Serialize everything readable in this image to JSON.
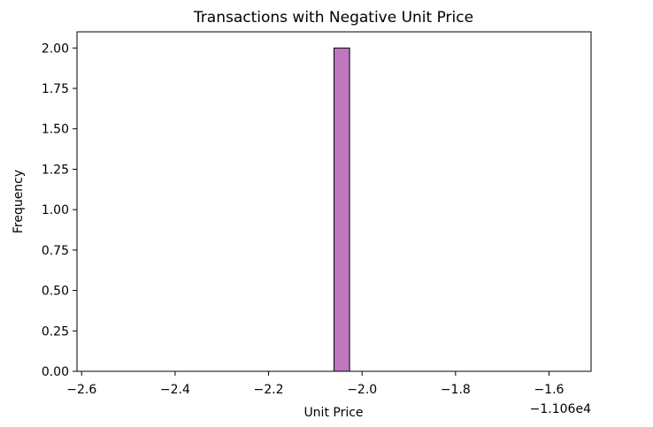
{
  "chart_data": {
    "type": "bar",
    "title": "Transactions with Negative Unit Price",
    "xlabel": "Unit Price",
    "ylabel": "Frequency",
    "x_offset_label": "−1.106e4",
    "xlim": [
      -2.61,
      -1.51
    ],
    "ylim": [
      0,
      2.1
    ],
    "x_ticks": [
      {
        "value": -2.6,
        "label": "−2.6"
      },
      {
        "value": -2.4,
        "label": "−2.4"
      },
      {
        "value": -2.2,
        "label": "−2.2"
      },
      {
        "value": -2.0,
        "label": "−2.0"
      },
      {
        "value": -1.8,
        "label": "−1.8"
      },
      {
        "value": -1.6,
        "label": "−1.6"
      }
    ],
    "y_ticks": [
      {
        "value": 0.0,
        "label": "0.00"
      },
      {
        "value": 0.25,
        "label": "0.25"
      },
      {
        "value": 0.5,
        "label": "0.50"
      },
      {
        "value": 0.75,
        "label": "0.75"
      },
      {
        "value": 1.0,
        "label": "1.00"
      },
      {
        "value": 1.25,
        "label": "1.25"
      },
      {
        "value": 1.5,
        "label": "1.50"
      },
      {
        "value": 1.75,
        "label": "1.75"
      },
      {
        "value": 2.0,
        "label": "2.00"
      }
    ],
    "bins_range": [
      -2.56,
      -1.56
    ],
    "bin_count": 30,
    "bars": [
      {
        "x_start": -2.06,
        "x_end": -2.0267,
        "value": 2
      }
    ],
    "bar_color": "#bf77bf",
    "bar_edge_color": "#000000",
    "grid": false
  }
}
